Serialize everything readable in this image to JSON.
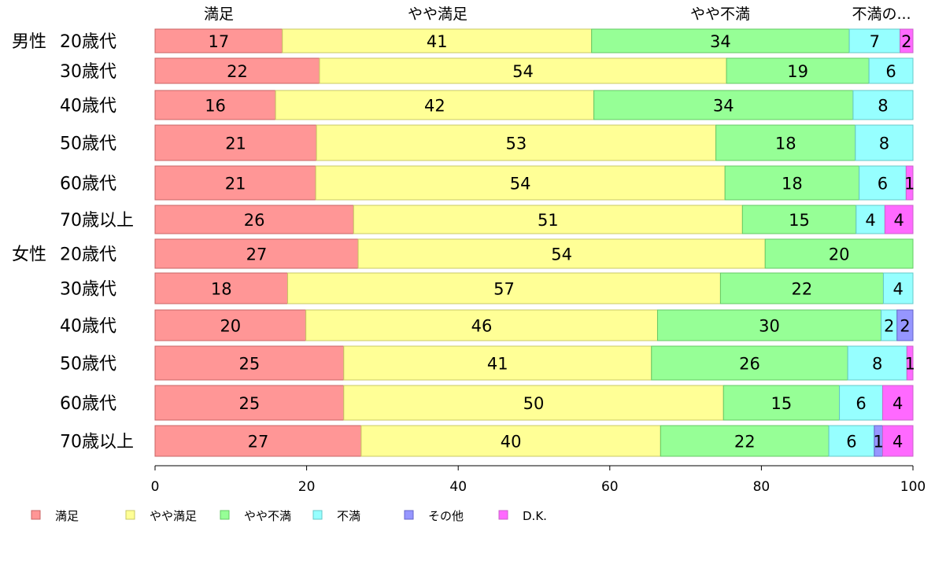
{
  "chart_data": {
    "type": "bar",
    "orientation": "horizontal-stacked",
    "xlim": [
      0,
      100
    ],
    "xticks": [
      0,
      20,
      40,
      60,
      80,
      100
    ],
    "series_names": [
      "満足",
      "やや満足",
      "やや不満",
      "不満",
      "その他",
      "D.K."
    ],
    "top_labels": [
      "満足",
      "やや満足",
      "やや不満",
      "不満の..."
    ],
    "colors": [
      "#ff9696",
      "#ffff96",
      "#96ff96",
      "#96ffff",
      "#9696ff",
      "#ff69ff"
    ],
    "rows": [
      {
        "group": "男性",
        "label": "20歳代",
        "values": [
          16.8,
          40.8,
          34.0,
          6.7,
          0,
          1.7
        ]
      },
      {
        "group": "",
        "label": "30歳代",
        "values": [
          21.7,
          53.7,
          18.8,
          5.8,
          0,
          0
        ]
      },
      {
        "group": "",
        "label": "40歳代",
        "values": [
          15.9,
          42.0,
          34.2,
          7.9,
          0,
          0
        ]
      },
      {
        "group": "",
        "label": "50歳代",
        "values": [
          21.3,
          52.7,
          18.4,
          7.6,
          0,
          0
        ]
      },
      {
        "group": "",
        "label": "60歳代",
        "values": [
          21.2,
          54.0,
          17.7,
          6.2,
          0,
          0.9
        ]
      },
      {
        "group": "",
        "label": "70歳以上",
        "values": [
          26.2,
          51.3,
          15.0,
          3.8,
          0,
          3.7
        ]
      },
      {
        "group": "女性",
        "label": "20歳代",
        "values": [
          26.8,
          53.7,
          19.5,
          0,
          0,
          0
        ]
      },
      {
        "group": "",
        "label": "30歳代",
        "values": [
          17.5,
          57.1,
          21.5,
          3.9,
          0,
          0
        ]
      },
      {
        "group": "",
        "label": "40歳代",
        "values": [
          19.9,
          46.4,
          29.5,
          2.1,
          2.1,
          0
        ]
      },
      {
        "group": "",
        "label": "50歳代",
        "values": [
          24.9,
          40.6,
          25.9,
          7.8,
          0,
          0.8
        ]
      },
      {
        "group": "",
        "label": "60歳代",
        "values": [
          24.9,
          50.1,
          15.3,
          5.7,
          0,
          4.0
        ]
      },
      {
        "group": "",
        "label": "70歳以上",
        "values": [
          27.2,
          39.5,
          22.2,
          6.0,
          1.1,
          4.0
        ]
      }
    ],
    "legend_position": "bottom-left"
  }
}
